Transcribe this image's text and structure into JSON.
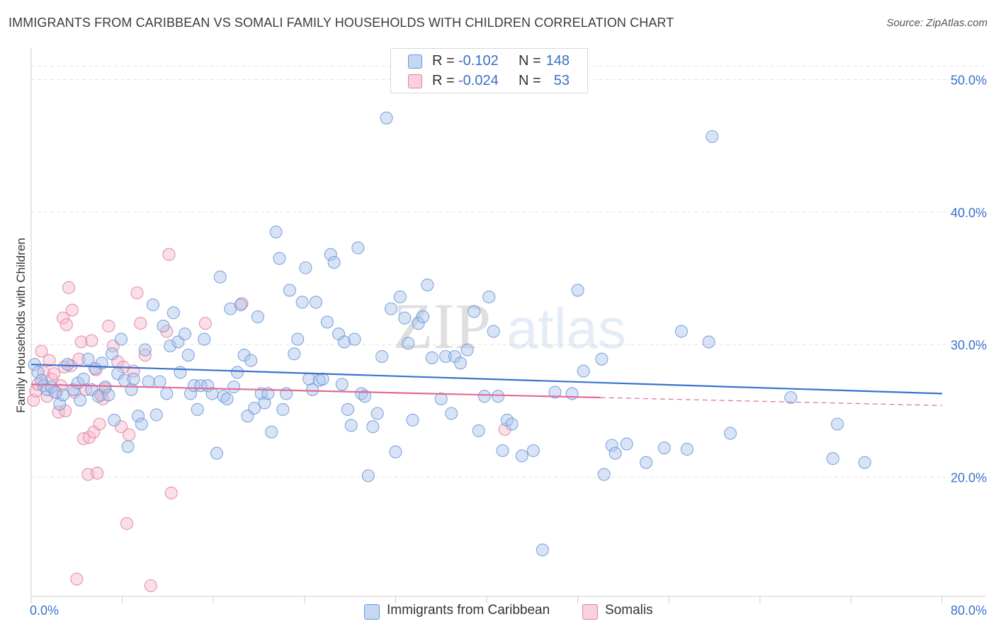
{
  "title": "IMMIGRANTS FROM CARIBBEAN VS SOMALI FAMILY HOUSEHOLDS WITH CHILDREN CORRELATION CHART",
  "source": "Source: ZipAtlas.com",
  "watermark": {
    "zip": "ZIP",
    "atlas": "atlas"
  },
  "legend": {
    "rows": [
      {
        "r_label": "R =",
        "r_value": "-0.102",
        "n_label": "N =",
        "n_value": "148",
        "color": "#a9c4ec",
        "border": "#6c97d8"
      },
      {
        "r_label": "R =",
        "r_value": "-0.024",
        "n_label": "N =",
        "n_value": "53",
        "color": "#f7b9cd",
        "border": "#e07fa0"
      }
    ]
  },
  "bottom_legend": {
    "series1": "Immigrants from Caribbean",
    "series2": "Somalis"
  },
  "chart_data": {
    "type": "scatter",
    "title": "IMMIGRANTS FROM CARIBBEAN VS SOMALI FAMILY HOUSEHOLDS WITH CHILDREN CORRELATION CHART",
    "xlabel": "",
    "ylabel": "Family Households with Children",
    "xlim": [
      0,
      80
    ],
    "ylim": [
      11,
      52
    ],
    "x_tick_labels": [
      "0.0%",
      "80.0%"
    ],
    "y_ticks": [
      20,
      30,
      40,
      50
    ],
    "y_tick_labels": [
      "20.0%",
      "30.0%",
      "40.0%",
      "50.0%"
    ],
    "grid": true,
    "series": [
      {
        "name": "Immigrants from Caribbean",
        "color": "#6c97d8",
        "fill": "#a9c4ec",
        "trend": {
          "x0": 0,
          "y0": 28.5,
          "x1": 80,
          "y1": 26.3,
          "color": "#3a72cc"
        },
        "points": [
          [
            0.3,
            28.5
          ],
          [
            0.6,
            27.9
          ],
          [
            0.9,
            27.3
          ],
          [
            1.1,
            26.9
          ],
          [
            1.4,
            26.6
          ],
          [
            1.8,
            26.8
          ],
          [
            2.1,
            26.4
          ],
          [
            2.5,
            25.5
          ],
          [
            2.8,
            26.2
          ],
          [
            3.2,
            28.5
          ],
          [
            3.7,
            26.6
          ],
          [
            4.1,
            27.1
          ],
          [
            4.3,
            25.8
          ],
          [
            4.6,
            27.4
          ],
          [
            5.0,
            28.9
          ],
          [
            5.3,
            26.6
          ],
          [
            5.6,
            28.2
          ],
          [
            5.9,
            26.1
          ],
          [
            6.2,
            28.6
          ],
          [
            6.5,
            26.8
          ],
          [
            6.8,
            26.2
          ],
          [
            7.1,
            29.3
          ],
          [
            7.3,
            24.3
          ],
          [
            7.6,
            27.8
          ],
          [
            7.9,
            30.4
          ],
          [
            8.2,
            27.3
          ],
          [
            8.5,
            22.3
          ],
          [
            8.8,
            26.6
          ],
          [
            9.0,
            27.4
          ],
          [
            9.4,
            24.6
          ],
          [
            9.7,
            24.0
          ],
          [
            10.0,
            29.6
          ],
          [
            10.3,
            27.2
          ],
          [
            10.7,
            33.0
          ],
          [
            11.0,
            24.7
          ],
          [
            11.3,
            27.2
          ],
          [
            11.6,
            31.4
          ],
          [
            11.9,
            26.3
          ],
          [
            12.2,
            29.9
          ],
          [
            12.5,
            32.4
          ],
          [
            12.9,
            30.2
          ],
          [
            13.1,
            27.9
          ],
          [
            13.5,
            30.8
          ],
          [
            13.8,
            29.2
          ],
          [
            14.0,
            26.3
          ],
          [
            14.3,
            26.9
          ],
          [
            14.6,
            25.1
          ],
          [
            14.9,
            26.9
          ],
          [
            15.2,
            30.4
          ],
          [
            15.5,
            26.9
          ],
          [
            15.9,
            26.3
          ],
          [
            16.3,
            21.8
          ],
          [
            16.6,
            35.1
          ],
          [
            16.9,
            26.1
          ],
          [
            17.2,
            25.9
          ],
          [
            17.5,
            32.7
          ],
          [
            17.8,
            26.8
          ],
          [
            18.1,
            27.9
          ],
          [
            18.4,
            33.0
          ],
          [
            18.7,
            29.2
          ],
          [
            19.0,
            24.6
          ],
          [
            19.3,
            28.8
          ],
          [
            19.6,
            25.2
          ],
          [
            19.9,
            32.1
          ],
          [
            20.2,
            26.3
          ],
          [
            20.5,
            25.6
          ],
          [
            20.8,
            26.3
          ],
          [
            21.1,
            23.4
          ],
          [
            21.5,
            38.5
          ],
          [
            21.8,
            36.5
          ],
          [
            22.1,
            25.1
          ],
          [
            22.4,
            26.3
          ],
          [
            22.7,
            34.1
          ],
          [
            23.1,
            29.3
          ],
          [
            23.4,
            30.4
          ],
          [
            23.8,
            33.2
          ],
          [
            24.1,
            35.8
          ],
          [
            24.4,
            27.4
          ],
          [
            24.7,
            26.6
          ],
          [
            25.0,
            33.2
          ],
          [
            25.3,
            27.3
          ],
          [
            25.6,
            27.4
          ],
          [
            26.0,
            31.7
          ],
          [
            26.3,
            36.8
          ],
          [
            26.6,
            36.2
          ],
          [
            27.0,
            30.8
          ],
          [
            27.3,
            27.0
          ],
          [
            27.5,
            30.2
          ],
          [
            27.8,
            25.1
          ],
          [
            28.1,
            23.9
          ],
          [
            28.4,
            30.4
          ],
          [
            28.7,
            37.3
          ],
          [
            29.0,
            26.3
          ],
          [
            29.3,
            26.1
          ],
          [
            29.6,
            20.1
          ],
          [
            30.0,
            23.8
          ],
          [
            30.4,
            24.8
          ],
          [
            30.8,
            29.1
          ],
          [
            31.2,
            47.1
          ],
          [
            31.6,
            32.7
          ],
          [
            32.0,
            21.9
          ],
          [
            32.4,
            33.6
          ],
          [
            32.8,
            32.0
          ],
          [
            33.1,
            30.1
          ],
          [
            33.5,
            24.3
          ],
          [
            34.0,
            31.6
          ],
          [
            34.4,
            32.1
          ],
          [
            34.8,
            34.5
          ],
          [
            35.2,
            29.0
          ],
          [
            36.0,
            25.9
          ],
          [
            36.4,
            29.1
          ],
          [
            36.9,
            24.8
          ],
          [
            37.2,
            29.1
          ],
          [
            37.7,
            28.6
          ],
          [
            38.3,
            29.6
          ],
          [
            38.9,
            32.5
          ],
          [
            39.3,
            23.5
          ],
          [
            39.8,
            26.1
          ],
          [
            40.2,
            33.6
          ],
          [
            40.6,
            31.0
          ],
          [
            41.0,
            26.1
          ],
          [
            41.4,
            22.0
          ],
          [
            41.8,
            24.3
          ],
          [
            42.2,
            24.0
          ],
          [
            43.1,
            21.6
          ],
          [
            44.1,
            22.0
          ],
          [
            44.9,
            14.5
          ],
          [
            46.0,
            26.4
          ],
          [
            47.5,
            26.3
          ],
          [
            48.0,
            34.1
          ],
          [
            48.5,
            28.0
          ],
          [
            50.1,
            28.9
          ],
          [
            50.3,
            20.2
          ],
          [
            51.0,
            22.4
          ],
          [
            51.3,
            21.8
          ],
          [
            52.3,
            22.5
          ],
          [
            54.0,
            21.1
          ],
          [
            55.6,
            22.2
          ],
          [
            57.1,
            31.0
          ],
          [
            57.6,
            22.1
          ],
          [
            59.5,
            30.2
          ],
          [
            59.8,
            45.7
          ],
          [
            61.4,
            23.3
          ],
          [
            66.7,
            26.0
          ],
          [
            70.4,
            21.4
          ],
          [
            70.8,
            24.0
          ],
          [
            73.2,
            21.1
          ]
        ]
      },
      {
        "name": "Somalis",
        "color": "#e07fa0",
        "fill": "#f7b9cd",
        "trend": {
          "x0": 0,
          "y0": 27.0,
          "x1": 50,
          "y1": 26.0,
          "color": "#e26b96"
        },
        "trend_dashed": {
          "x0": 50,
          "y0": 26.0,
          "x1": 80,
          "y1": 25.4
        },
        "points": [
          [
            0.2,
            25.8
          ],
          [
            0.4,
            26.5
          ],
          [
            0.6,
            27.0
          ],
          [
            0.9,
            29.5
          ],
          [
            1.1,
            27.9
          ],
          [
            1.4,
            26.1
          ],
          [
            1.6,
            28.8
          ],
          [
            1.8,
            27.4
          ],
          [
            2.0,
            27.8
          ],
          [
            2.2,
            26.4
          ],
          [
            2.4,
            24.9
          ],
          [
            2.6,
            26.9
          ],
          [
            2.8,
            32.0
          ],
          [
            3.0,
            25.0
          ],
          [
            3.1,
            31.5
          ],
          [
            3.3,
            34.3
          ],
          [
            3.5,
            28.4
          ],
          [
            3.6,
            32.6
          ],
          [
            3.8,
            26.4
          ],
          [
            4.0,
            12.3
          ],
          [
            4.2,
            28.9
          ],
          [
            4.4,
            30.2
          ],
          [
            4.6,
            22.9
          ],
          [
            4.8,
            26.6
          ],
          [
            5.0,
            20.2
          ],
          [
            5.1,
            23.0
          ],
          [
            5.3,
            30.3
          ],
          [
            5.5,
            23.4
          ],
          [
            5.7,
            28.1
          ],
          [
            5.8,
            20.3
          ],
          [
            6.0,
            24.0
          ],
          [
            6.3,
            25.9
          ],
          [
            6.5,
            26.7
          ],
          [
            6.8,
            31.4
          ],
          [
            7.2,
            29.9
          ],
          [
            7.6,
            28.7
          ],
          [
            7.9,
            23.8
          ],
          [
            8.1,
            28.3
          ],
          [
            8.4,
            16.5
          ],
          [
            8.6,
            23.2
          ],
          [
            9.0,
            28.0
          ],
          [
            9.3,
            33.9
          ],
          [
            9.6,
            31.6
          ],
          [
            10.0,
            29.2
          ],
          [
            10.5,
            11.8
          ],
          [
            11.9,
            31.0
          ],
          [
            12.1,
            36.8
          ],
          [
            12.3,
            18.8
          ],
          [
            15.3,
            31.6
          ],
          [
            18.5,
            33.1
          ],
          [
            41.6,
            23.6
          ],
          [
            6.1,
            26.2
          ],
          [
            2.9,
            28.3
          ]
        ]
      }
    ]
  }
}
